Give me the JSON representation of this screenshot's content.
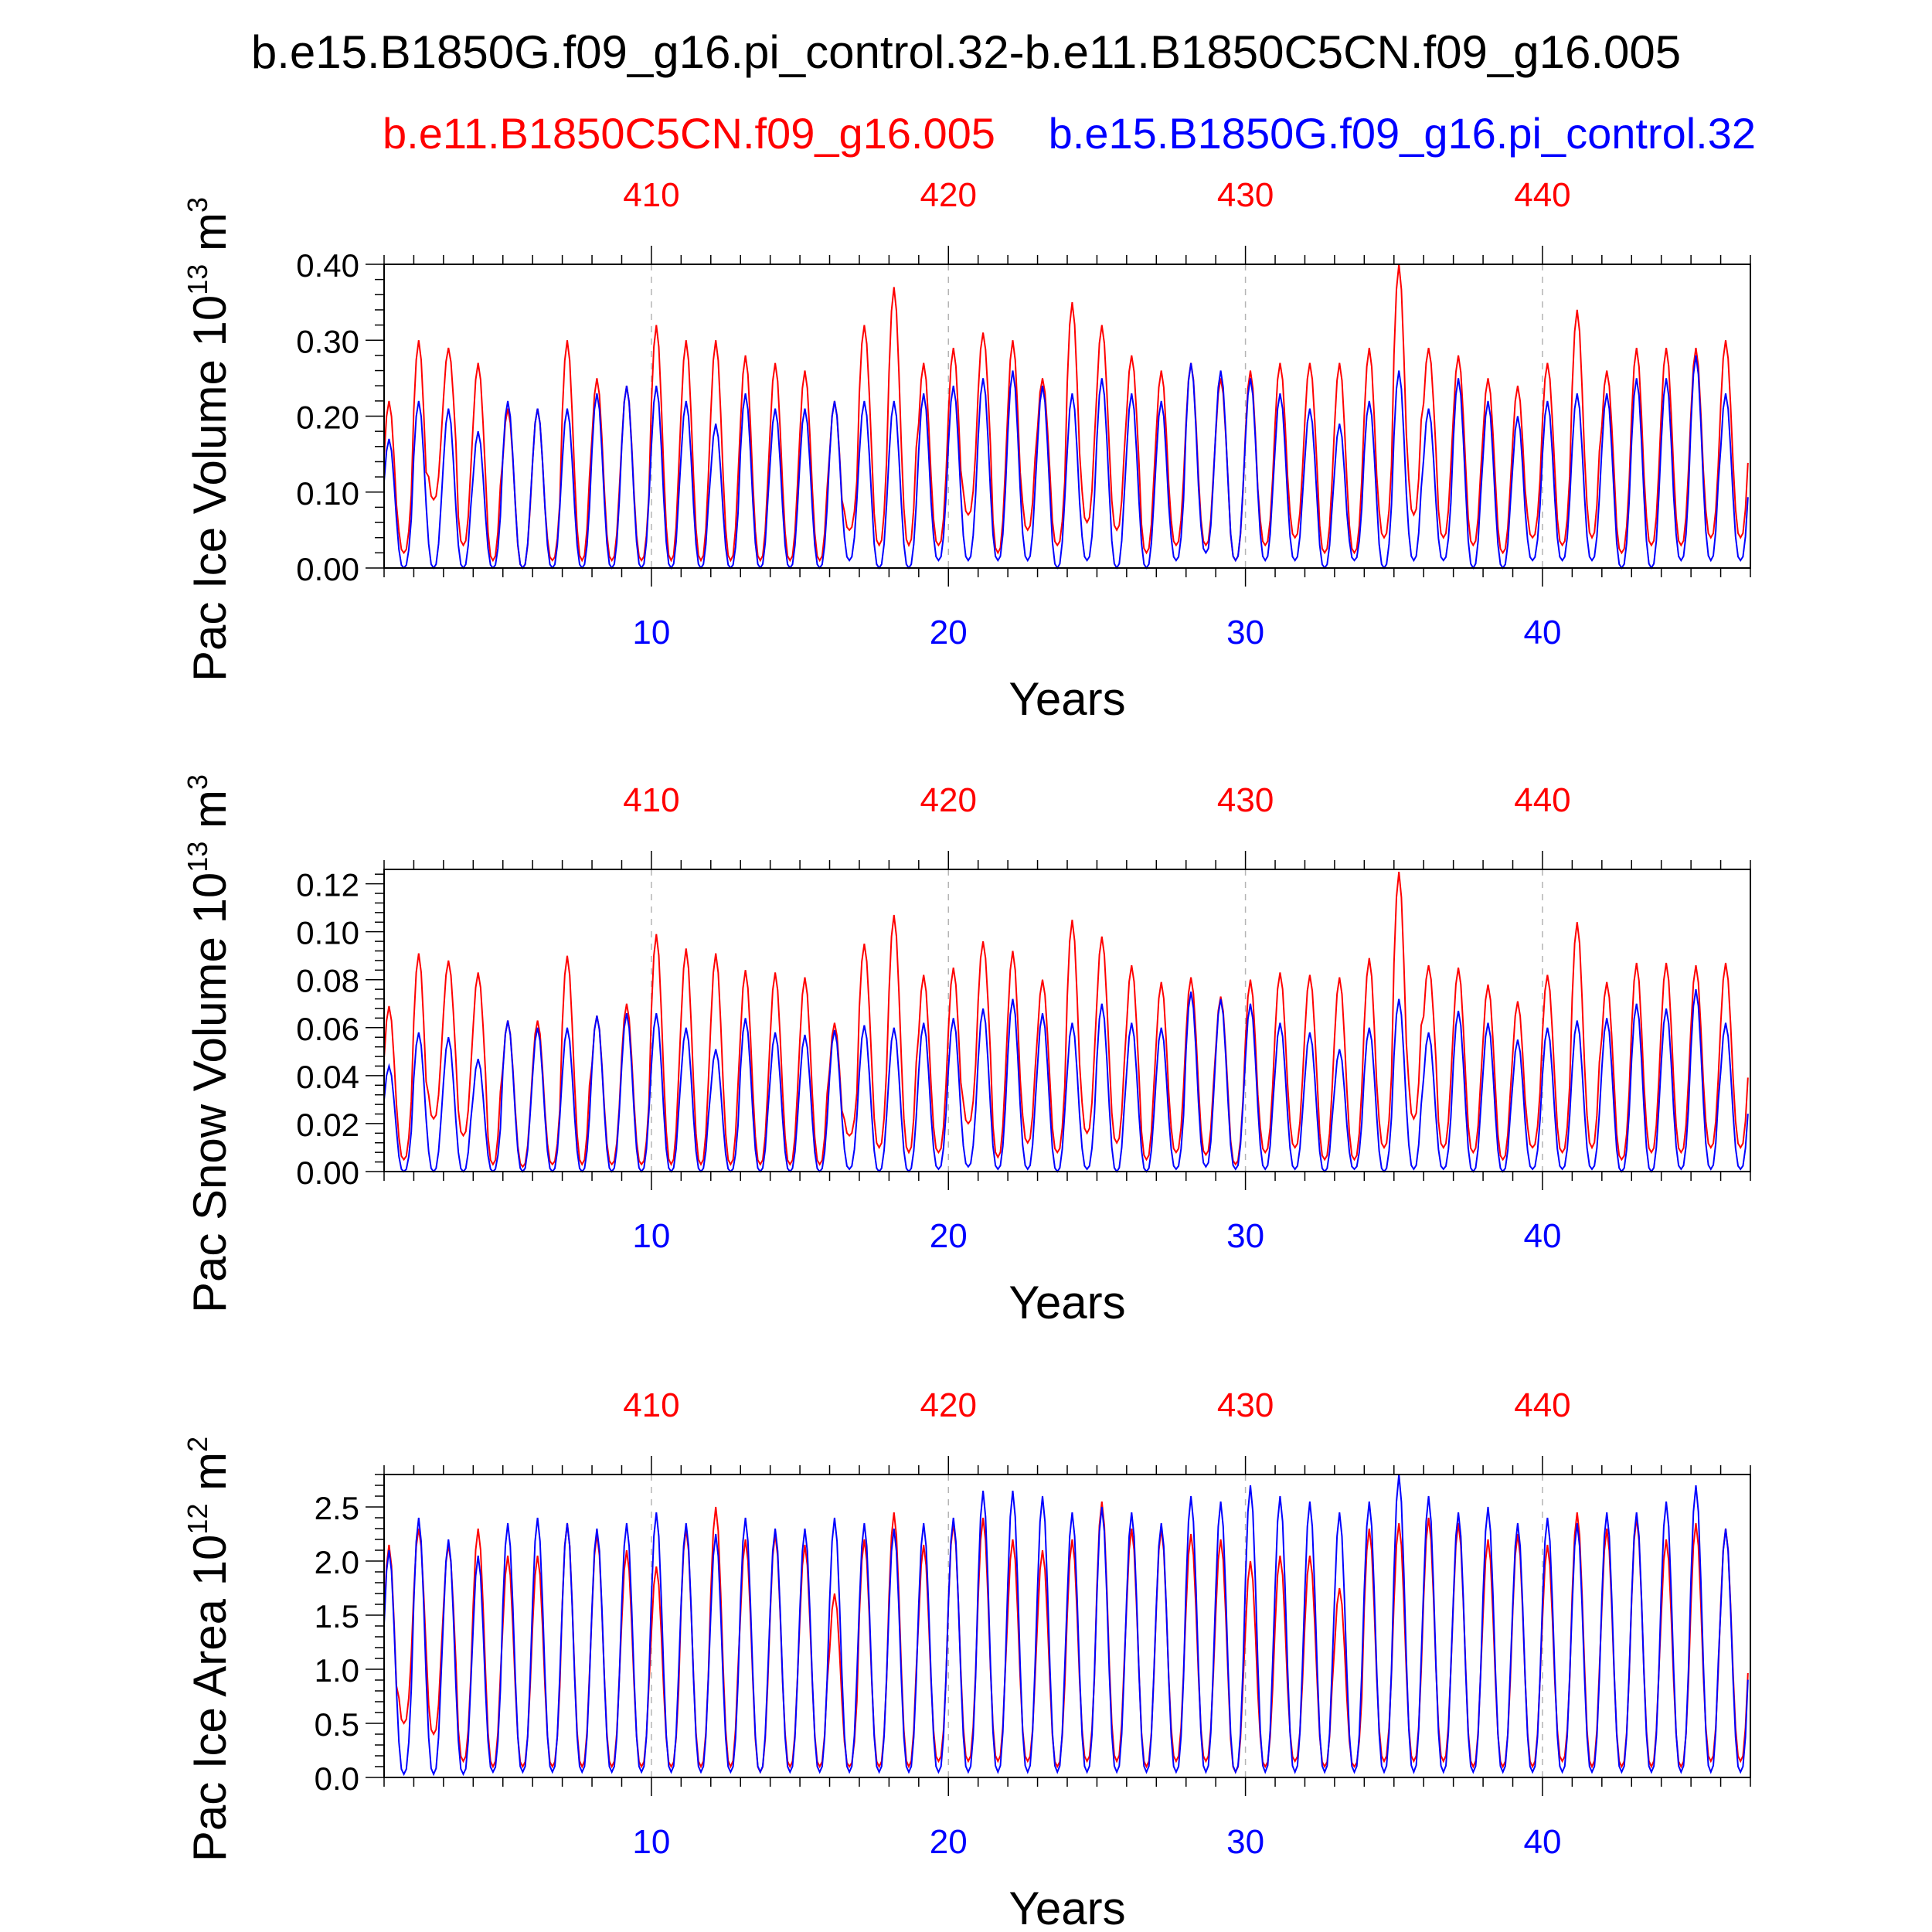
{
  "figure": {
    "title": "b.e15.B1850G.f09_g16.pi_control.32-b.e11.B1850C5CN.f09_g16.005",
    "legend_red": "b.e11.B1850C5CN.f09_g16.005",
    "legend_blue": "b.e15.B1850G.f09_g16.pi_control.32"
  },
  "colors": {
    "red_series": "#ff0000",
    "blue_series": "#0000ff",
    "axis": "#000000",
    "grid": "#b4b4b4"
  },
  "chart_data": [
    {
      "type": "line",
      "ylabel_main": "Pac Ice Volume 10",
      "ylabel_exp": "13",
      "ylabel_unit": " m",
      "ylabel_unit_exp": "3",
      "xlabel": "Years",
      "yticks": [
        0.0,
        0.1,
        0.2,
        0.3,
        0.4
      ],
      "ytick_labels": [
        "0.00",
        "0.10",
        "0.20",
        "0.30",
        "0.40"
      ],
      "ylim": [
        0,
        0.4
      ],
      "xlim": [
        1,
        47
      ],
      "bottom_ticks": [
        10,
        20,
        30,
        40
      ],
      "top_ticks": [
        410,
        420,
        430,
        440
      ],
      "top_tick_at": [
        10,
        20,
        30,
        40
      ],
      "grid": "vertical dashed at decade marks",
      "series": [
        {
          "name": "b.e11.B1850C5CN.f09_g16.005",
          "color": "red",
          "peaks": [
            0.22,
            0.3,
            0.29,
            0.27,
            0.21,
            0.21,
            0.3,
            0.25,
            0.24,
            0.32,
            0.3,
            0.3,
            0.28,
            0.27,
            0.26,
            0.22,
            0.32,
            0.37,
            0.27,
            0.29,
            0.31,
            0.3,
            0.25,
            0.35,
            0.32,
            0.28,
            0.26,
            0.27,
            0.25,
            0.26,
            0.27,
            0.27,
            0.27,
            0.29,
            0.4,
            0.29,
            0.28,
            0.25,
            0.24,
            0.27,
            0.34,
            0.26,
            0.29,
            0.29,
            0.29,
            0.3
          ],
          "troughs": [
            0.0,
            0.02,
            0.09,
            0.03,
            0.01,
            0.0,
            0.01,
            0.01,
            0.01,
            0.01,
            0.01,
            0.01,
            0.01,
            0.01,
            0.01,
            0.01,
            0.05,
            0.03,
            0.03,
            0.03,
            0.07,
            0.02,
            0.05,
            0.03,
            0.06,
            0.05,
            0.02,
            0.03,
            0.03,
            0.01,
            0.03,
            0.04,
            0.02,
            0.02,
            0.04,
            0.07,
            0.04,
            0.03,
            0.02,
            0.04,
            0.03,
            0.04,
            0.02,
            0.03,
            0.03,
            0.04
          ]
        },
        {
          "name": "b.e15.B1850G.f09_g16.pi_control.32",
          "color": "blue",
          "peaks": [
            0.17,
            0.22,
            0.21,
            0.18,
            0.22,
            0.21,
            0.21,
            0.23,
            0.24,
            0.24,
            0.22,
            0.19,
            0.23,
            0.21,
            0.21,
            0.22,
            0.22,
            0.22,
            0.23,
            0.24,
            0.25,
            0.26,
            0.24,
            0.23,
            0.25,
            0.23,
            0.22,
            0.27,
            0.26,
            0.25,
            0.23,
            0.21,
            0.19,
            0.22,
            0.26,
            0.21,
            0.25,
            0.22,
            0.2,
            0.22,
            0.23,
            0.23,
            0.25,
            0.25,
            0.28,
            0.23
          ],
          "troughs": [
            0.0,
            0.0,
            0.0,
            0.0,
            0.0,
            0.0,
            0.0,
            0.0,
            0.0,
            0.0,
            0.0,
            0.0,
            0.0,
            0.0,
            0.0,
            0.0,
            0.01,
            0.0,
            0.0,
            0.01,
            0.01,
            0.01,
            0.01,
            0.0,
            0.01,
            0.0,
            0.0,
            0.01,
            0.02,
            0.01,
            0.01,
            0.01,
            0.0,
            0.01,
            0.0,
            0.01,
            0.01,
            0.0,
            0.0,
            0.01,
            0.01,
            0.01,
            0.0,
            0.0,
            0.01,
            0.01
          ]
        }
      ]
    },
    {
      "type": "line",
      "ylabel_main": "Pac Snow Volume 10",
      "ylabel_exp": "13",
      "ylabel_unit": " m",
      "ylabel_unit_exp": "3",
      "xlabel": "Years",
      "yticks": [
        0.0,
        0.02,
        0.04,
        0.06,
        0.08,
        0.1,
        0.12
      ],
      "ytick_labels": [
        "0.00",
        "0.02",
        "0.04",
        "0.06",
        "0.08",
        "0.10",
        "0.12"
      ],
      "ylim": [
        0,
        0.126
      ],
      "xlim": [
        1,
        47
      ],
      "bottom_ticks": [
        10,
        20,
        30,
        40
      ],
      "top_ticks": [
        410,
        420,
        430,
        440
      ],
      "top_tick_at": [
        10,
        20,
        30,
        40
      ],
      "grid": "vertical dashed at decade marks",
      "series": [
        {
          "name": "b.e11.B1850C5CN.f09_g16.005",
          "color": "red",
          "peaks": [
            0.069,
            0.091,
            0.088,
            0.083,
            0.063,
            0.063,
            0.09,
            0.065,
            0.07,
            0.099,
            0.093,
            0.091,
            0.084,
            0.083,
            0.081,
            0.062,
            0.095,
            0.107,
            0.082,
            0.085,
            0.096,
            0.092,
            0.08,
            0.105,
            0.098,
            0.086,
            0.079,
            0.081,
            0.073,
            0.08,
            0.083,
            0.082,
            0.081,
            0.089,
            0.125,
            0.086,
            0.085,
            0.078,
            0.071,
            0.082,
            0.104,
            0.079,
            0.087,
            0.087,
            0.086,
            0.087
          ],
          "troughs": [
            0.003,
            0.005,
            0.022,
            0.015,
            0.003,
            0.002,
            0.003,
            0.003,
            0.003,
            0.003,
            0.003,
            0.003,
            0.003,
            0.003,
            0.003,
            0.003,
            0.015,
            0.01,
            0.008,
            0.008,
            0.02,
            0.006,
            0.012,
            0.008,
            0.016,
            0.012,
            0.005,
            0.008,
            0.007,
            0.003,
            0.008,
            0.01,
            0.005,
            0.005,
            0.01,
            0.022,
            0.01,
            0.008,
            0.005,
            0.01,
            0.008,
            0.01,
            0.005,
            0.008,
            0.008,
            0.01
          ]
        },
        {
          "name": "b.e15.B1850G.f09_g16.pi_control.32",
          "color": "blue",
          "peaks": [
            0.044,
            0.058,
            0.056,
            0.047,
            0.063,
            0.06,
            0.06,
            0.065,
            0.066,
            0.066,
            0.06,
            0.051,
            0.064,
            0.058,
            0.057,
            0.059,
            0.061,
            0.06,
            0.062,
            0.064,
            0.068,
            0.072,
            0.066,
            0.062,
            0.07,
            0.062,
            0.06,
            0.075,
            0.072,
            0.07,
            0.062,
            0.058,
            0.051,
            0.06,
            0.072,
            0.058,
            0.067,
            0.062,
            0.055,
            0.06,
            0.063,
            0.064,
            0.07,
            0.068,
            0.076,
            0.062
          ],
          "troughs": [
            0.001,
            0.0,
            0.0,
            0.0,
            0.0,
            0.0,
            0.0,
            0.0,
            0.0,
            0.0,
            0.0,
            0.0,
            0.0,
            0.0,
            0.0,
            0.0,
            0.001,
            0.0,
            0.0,
            0.001,
            0.002,
            0.001,
            0.001,
            0.0,
            0.001,
            0.0,
            0.0,
            0.001,
            0.002,
            0.001,
            0.001,
            0.001,
            0.0,
            0.001,
            0.0,
            0.001,
            0.001,
            0.0,
            0.0,
            0.001,
            0.001,
            0.001,
            0.0,
            0.0,
            0.001,
            0.001
          ]
        }
      ]
    },
    {
      "type": "line",
      "ylabel_main": "Pac Ice Area 10",
      "ylabel_exp": "12",
      "ylabel_unit": " m",
      "ylabel_unit_exp": "2",
      "xlabel": "Years",
      "yticks": [
        0.0,
        0.5,
        1.0,
        1.5,
        2.0,
        2.5
      ],
      "ytick_labels": [
        "0.0",
        "0.5",
        "1.0",
        "1.5",
        "2.0",
        "2.5"
      ],
      "ylim": [
        0,
        2.8
      ],
      "xlim": [
        1,
        47
      ],
      "bottom_ticks": [
        10,
        20,
        30,
        40
      ],
      "top_ticks": [
        410,
        420,
        430,
        440
      ],
      "top_tick_at": [
        10,
        20,
        30,
        40
      ],
      "grid": "vertical dashed at decade marks",
      "series": [
        {
          "name": "b.e11.B1850C5CN.f09_g16.005",
          "color": "red",
          "peaks": [
            2.15,
            2.3,
            2.15,
            2.3,
            2.05,
            2.05,
            2.35,
            2.25,
            2.1,
            1.95,
            2.3,
            2.5,
            2.2,
            2.25,
            2.15,
            1.7,
            2.2,
            2.45,
            2.15,
            2.35,
            2.4,
            2.2,
            2.1,
            2.2,
            2.55,
            2.3,
            2.3,
            2.25,
            2.2,
            2.0,
            2.05,
            2.05,
            1.75,
            2.3,
            2.35,
            2.4,
            2.35,
            2.2,
            2.25,
            2.15,
            2.45,
            2.3,
            2.4,
            2.2,
            2.35,
            2.3
          ],
          "troughs": [
            0.05,
            0.5,
            0.4,
            0.15,
            0.1,
            0.1,
            0.1,
            0.1,
            0.1,
            0.1,
            0.1,
            0.1,
            0.1,
            0.05,
            0.1,
            0.1,
            0.1,
            0.1,
            0.1,
            0.15,
            0.15,
            0.15,
            0.15,
            0.1,
            0.15,
            0.15,
            0.1,
            0.15,
            0.15,
            0.05,
            0.1,
            0.15,
            0.1,
            0.1,
            0.15,
            0.15,
            0.15,
            0.1,
            0.1,
            0.1,
            0.15,
            0.1,
            0.1,
            0.1,
            0.1,
            0.15
          ]
        },
        {
          "name": "b.e15.B1850G.f09_g16.pi_control.32",
          "color": "blue",
          "peaks": [
            2.1,
            2.4,
            2.2,
            2.05,
            2.35,
            2.4,
            2.35,
            2.3,
            2.35,
            2.45,
            2.35,
            2.25,
            2.4,
            2.3,
            2.3,
            2.4,
            2.35,
            2.3,
            2.35,
            2.4,
            2.65,
            2.65,
            2.6,
            2.45,
            2.5,
            2.45,
            2.35,
            2.6,
            2.55,
            2.7,
            2.6,
            2.55,
            2.45,
            2.55,
            2.8,
            2.6,
            2.45,
            2.5,
            2.35,
            2.4,
            2.35,
            2.45,
            2.45,
            2.55,
            2.7,
            2.3
          ],
          "troughs": [
            0.02,
            0.03,
            0.03,
            0.03,
            0.05,
            0.05,
            0.05,
            0.05,
            0.05,
            0.05,
            0.05,
            0.05,
            0.05,
            0.05,
            0.05,
            0.05,
            0.05,
            0.05,
            0.05,
            0.05,
            0.05,
            0.05,
            0.05,
            0.05,
            0.05,
            0.05,
            0.05,
            0.05,
            0.05,
            0.05,
            0.05,
            0.05,
            0.05,
            0.05,
            0.05,
            0.05,
            0.05,
            0.05,
            0.05,
            0.05,
            0.05,
            0.05,
            0.05,
            0.05,
            0.05,
            0.05
          ]
        }
      ]
    }
  ]
}
